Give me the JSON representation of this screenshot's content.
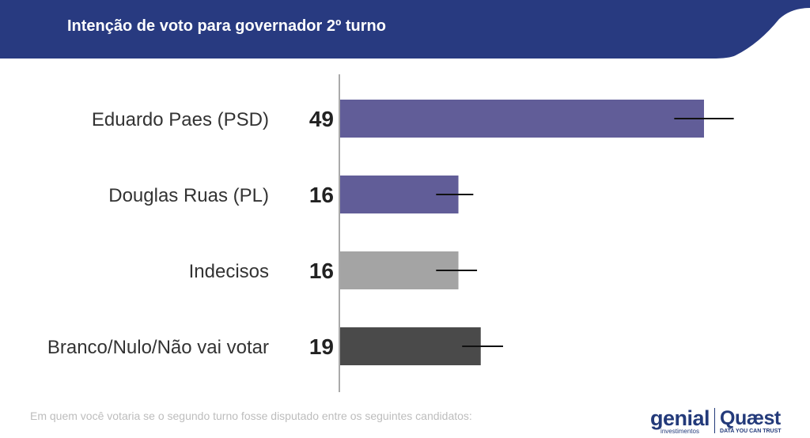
{
  "header": {
    "title": "Intenção de voto para governador 2º turno"
  },
  "colors": {
    "header_bg": "#283a80",
    "axis": "#aaaaaa",
    "error_bar": "#111111"
  },
  "chart_data": {
    "type": "bar",
    "orientation": "horizontal",
    "title": "Intenção de voto para governador 2º turno",
    "categories": [
      "Eduardo Paes (PSD)",
      "Douglas Ruas (PL)",
      "Indecisos",
      "Branco/Nulo/Não vai votar"
    ],
    "values": [
      49,
      16,
      16,
      19
    ],
    "value_labels": [
      "49",
      "16",
      "16",
      "19"
    ],
    "error_bars": [
      [
        45,
        53
      ],
      [
        13,
        18
      ],
      [
        13,
        18.5
      ],
      [
        16.5,
        22
      ]
    ],
    "bar_colors": [
      "#615d98",
      "#615d98",
      "#a4a4a4",
      "#4a4a4a"
    ],
    "xlim": [
      0,
      55
    ],
    "grid": false,
    "legend": "none"
  },
  "footnote": "Em quem você votaria se o segundo turno fosse disputado entre os seguintes candidatos:",
  "logos": {
    "genial": {
      "name": "genial",
      "sub": "investimentos"
    },
    "quaest": {
      "name": "Quæst",
      "sub": "DATA YOU CAN TRUST"
    }
  }
}
